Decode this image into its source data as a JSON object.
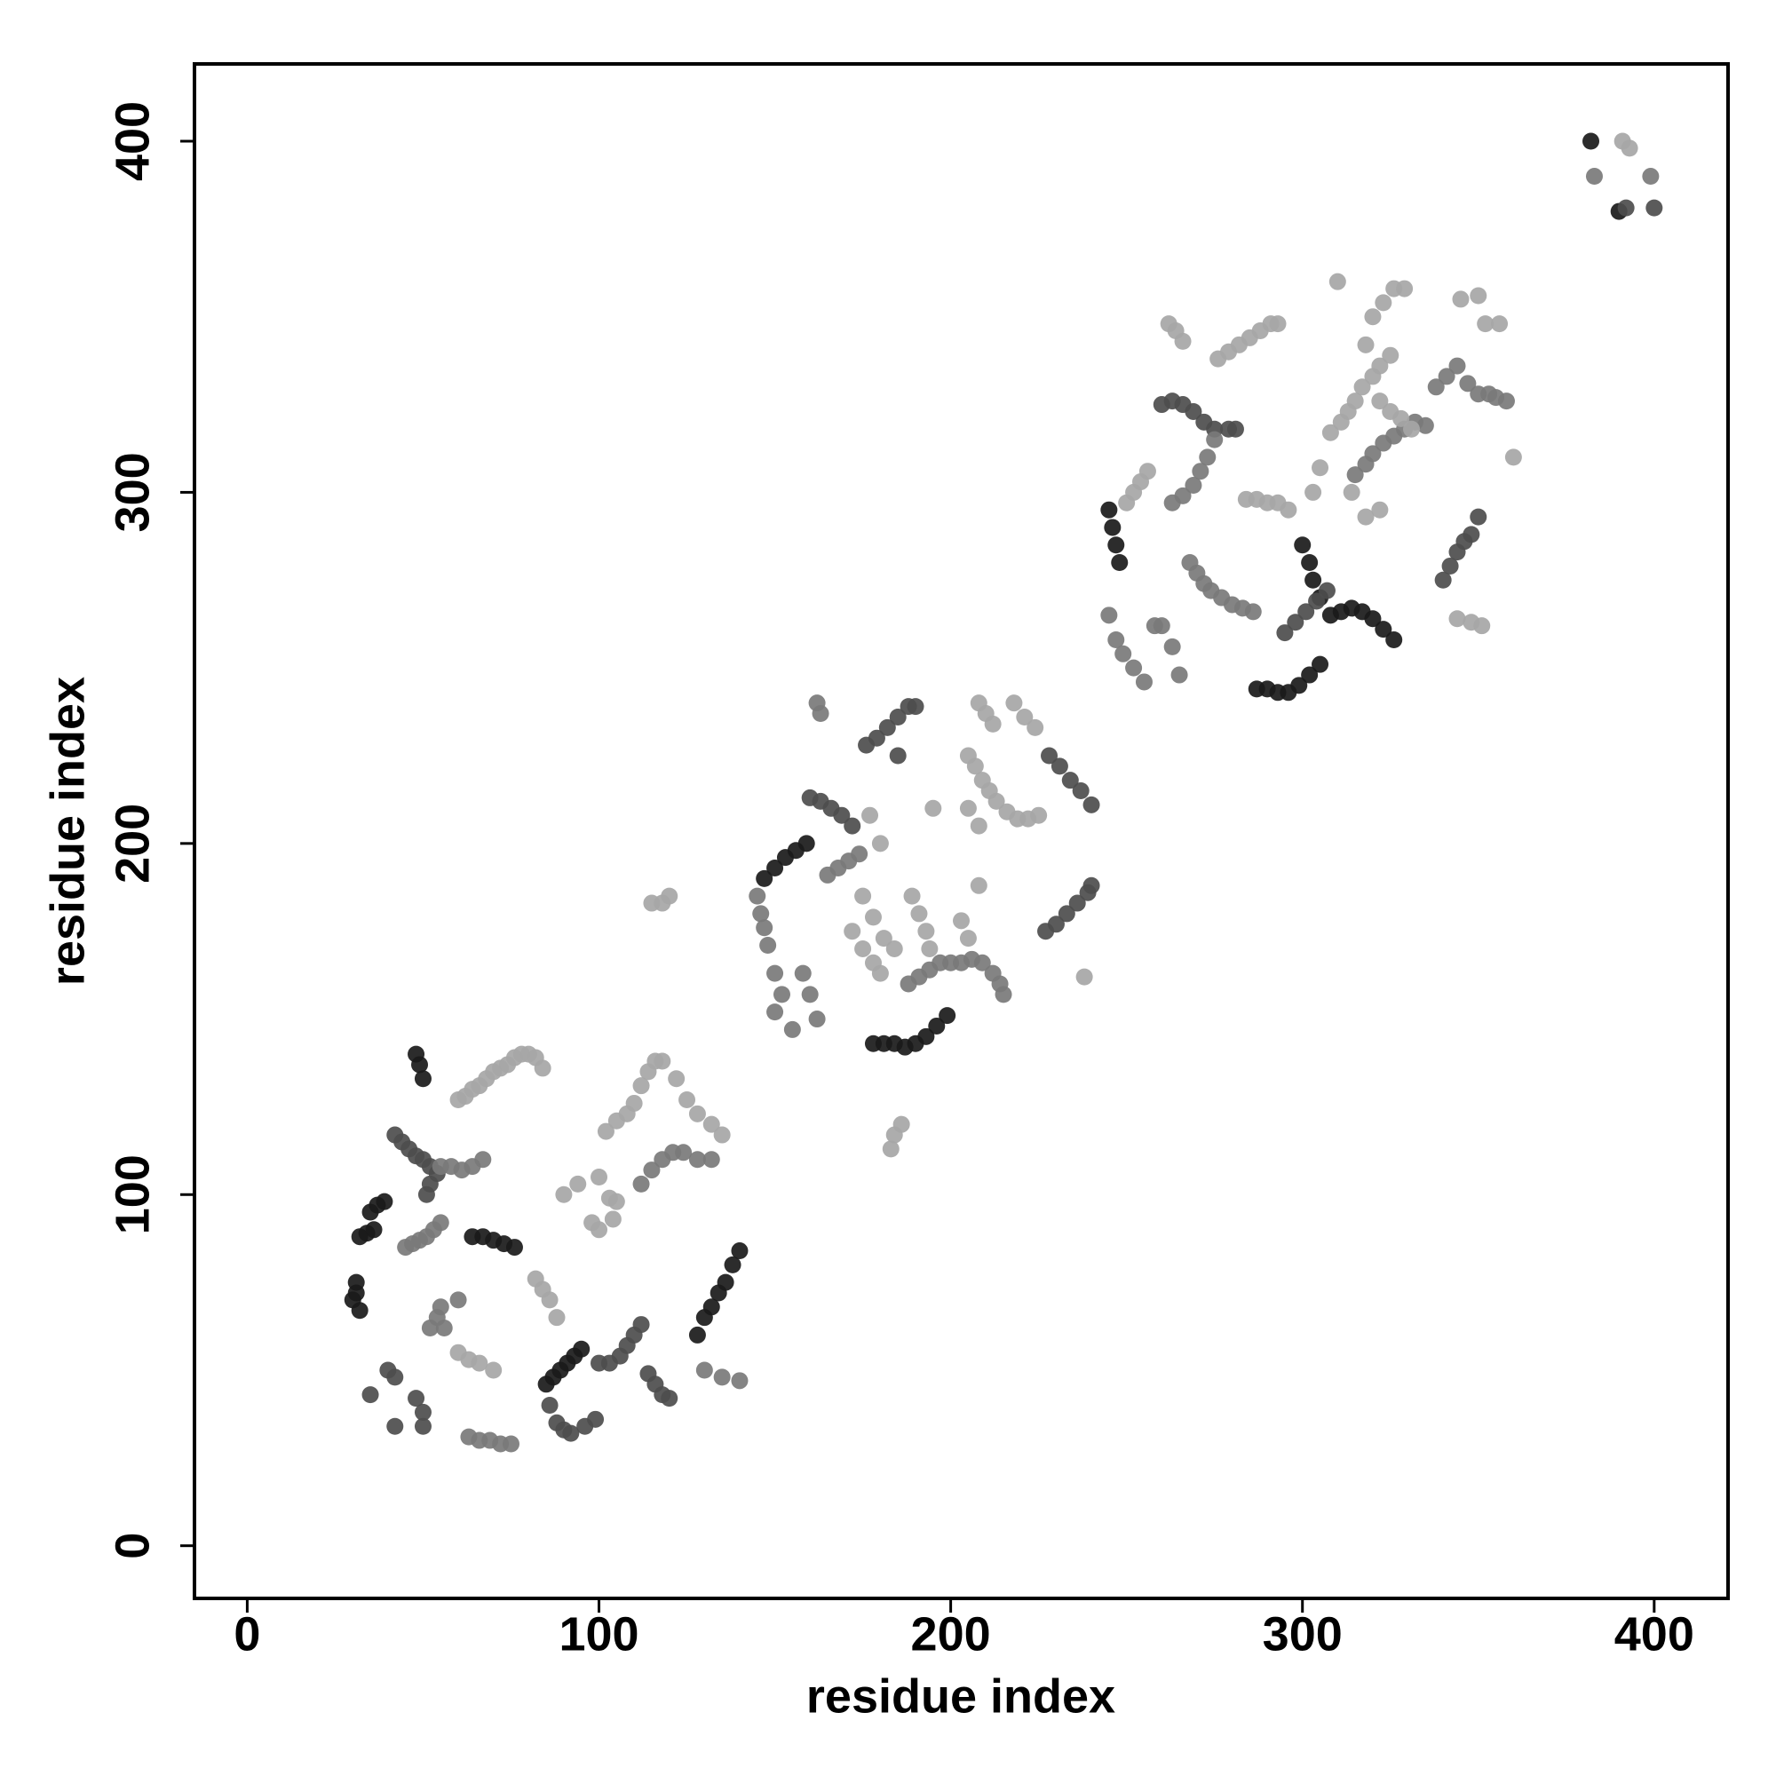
{
  "chart_data": {
    "type": "scatter",
    "xlabel": "residue index",
    "ylabel": "residue index",
    "xlim": [
      -15,
      421
    ],
    "ylim": [
      -15,
      422
    ],
    "xticks": [
      0,
      100,
      200,
      300,
      400
    ],
    "yticks": [
      0,
      100,
      200,
      300,
      400
    ],
    "series": [
      {
        "color": "#1a1a1a",
        "x": [
          30,
          31,
          32,
          31,
          32,
          34,
          35,
          37,
          39,
          36,
          48,
          49,
          50,
          64,
          67,
          70,
          73,
          76,
          85,
          87,
          89,
          91,
          93,
          95,
          128,
          130,
          132,
          134,
          136,
          138,
          140,
          147,
          150,
          153,
          156,
          159,
          178,
          181,
          184,
          187,
          190,
          193,
          196,
          199,
          245,
          246,
          247,
          248,
          287,
          290,
          293,
          296,
          299,
          302,
          305,
          300,
          302,
          303,
          305,
          308,
          311,
          314,
          317,
          320,
          323,
          326,
          382,
          390
        ],
        "y": [
          70,
          72,
          67,
          75,
          88,
          89,
          95,
          97,
          98,
          90,
          140,
          137,
          133,
          88,
          88,
          87,
          86,
          85,
          46,
          48,
          50,
          52,
          54,
          56,
          60,
          65,
          68,
          72,
          75,
          80,
          84,
          190,
          193,
          196,
          198,
          200,
          143,
          143,
          143,
          142,
          143,
          145,
          148,
          151,
          295,
          290,
          285,
          280,
          244,
          244,
          243,
          243,
          245,
          248,
          251,
          285,
          280,
          275,
          270,
          265,
          266,
          267,
          266,
          264,
          261,
          258,
          400,
          380
        ]
      },
      {
        "color": "#4d4d4d",
        "x": [
          42,
          44,
          46,
          48,
          50,
          52,
          54,
          51,
          52,
          40,
          42,
          48,
          50,
          42,
          50,
          35,
          86,
          88,
          90,
          92,
          96,
          99,
          100,
          103,
          106,
          108,
          110,
          112,
          114,
          116,
          118,
          120,
          160,
          163,
          166,
          169,
          172,
          176,
          179,
          182,
          185,
          188,
          190,
          185,
          228,
          231,
          234,
          237,
          240,
          227,
          230,
          233,
          236,
          239,
          240,
          260,
          263,
          266,
          269,
          272,
          275,
          279,
          281,
          295,
          298,
          301,
          304,
          307,
          340,
          342,
          344,
          346,
          348,
          350,
          392,
          400
        ],
        "y": [
          117,
          115,
          113,
          111,
          110,
          108,
          106,
          100,
          103,
          50,
          48,
          42,
          38,
          34,
          34,
          43,
          40,
          35,
          33,
          32,
          34,
          36,
          52,
          52,
          54,
          57,
          60,
          63,
          49,
          46,
          43,
          42,
          213,
          212,
          210,
          208,
          205,
          228,
          230,
          233,
          236,
          239,
          239,
          225,
          225,
          222,
          218,
          215,
          211,
          175,
          177,
          180,
          183,
          186,
          188,
          325,
          326,
          325,
          323,
          320,
          318,
          318,
          318,
          260,
          263,
          266,
          269,
          272,
          275,
          279,
          283,
          286,
          288,
          293,
          381,
          381
        ]
      },
      {
        "color": "#7a7a7a",
        "x": [
          45,
          47,
          49,
          51,
          53,
          55,
          55,
          58,
          61,
          64,
          67,
          60,
          55,
          54,
          56,
          52,
          63,
          66,
          69,
          72,
          75,
          112,
          115,
          118,
          121,
          124,
          128,
          132,
          130,
          135,
          140,
          145,
          146,
          147,
          148,
          150,
          152,
          150,
          155,
          158,
          160,
          162,
          165,
          168,
          171,
          174,
          162,
          163,
          188,
          191,
          194,
          197,
          200,
          203,
          206,
          209,
          212,
          214,
          215,
          245,
          247,
          249,
          252,
          255,
          258,
          260,
          263,
          265,
          263,
          266,
          269,
          271,
          273,
          275,
          268,
          270,
          272,
          274,
          277,
          280,
          283,
          286,
          315,
          318,
          320,
          323,
          326,
          329,
          332,
          335,
          338,
          341,
          344,
          347,
          350,
          353,
          355,
          358,
          383,
          399
        ],
        "y": [
          85,
          86,
          87,
          88,
          90,
          92,
          108,
          108,
          107,
          108,
          110,
          70,
          68,
          65,
          62,
          62,
          31,
          30,
          30,
          29,
          29,
          103,
          107,
          110,
          112,
          112,
          110,
          110,
          50,
          48,
          47,
          185,
          180,
          176,
          171,
          163,
          157,
          152,
          147,
          163,
          157,
          150,
          191,
          193,
          195,
          197,
          240,
          237,
          160,
          162,
          164,
          166,
          166,
          166,
          167,
          166,
          163,
          160,
          157,
          265,
          258,
          254,
          250,
          246,
          262,
          262,
          256,
          248,
          297,
          299,
          302,
          306,
          310,
          315,
          280,
          277,
          274,
          272,
          270,
          268,
          267,
          266,
          305,
          308,
          311,
          314,
          316,
          318,
          320,
          319,
          330,
          333,
          336,
          331,
          328,
          328,
          327,
          326,
          390,
          390
        ]
      },
      {
        "color": "#a6a6a6",
        "x": [
          60,
          62,
          64,
          66,
          68,
          70,
          72,
          74,
          76,
          78,
          80,
          82,
          84,
          60,
          63,
          66,
          70,
          82,
          84,
          86,
          88,
          90,
          94,
          98,
          100,
          104,
          102,
          105,
          108,
          110,
          112,
          114,
          116,
          118,
          122,
          125,
          128,
          132,
          135,
          100,
          103,
          105,
          180,
          177,
          175,
          178,
          181,
          184,
          172,
          175,
          178,
          180,
          183,
          184,
          186,
          189,
          191,
          193,
          194,
          120,
          115,
          118,
          205,
          207,
          209,
          211,
          213,
          216,
          219,
          222,
          225,
          208,
          210,
          212,
          218,
          221,
          224,
          238,
          208,
          205,
          208,
          203,
          205,
          195,
          250,
          252,
          254,
          256,
          262,
          264,
          266,
          276,
          279,
          282,
          285,
          288,
          291,
          293,
          284,
          287,
          290,
          293,
          296,
          303,
          305,
          308,
          311,
          313,
          315,
          317,
          320,
          322,
          325,
          310,
          318,
          320,
          323,
          326,
          329,
          322,
          325,
          328,
          331,
          345,
          350,
          352,
          356,
          344,
          348,
          351,
          360,
          318,
          322,
          314,
          391,
          393
        ],
        "y": [
          127,
          128,
          130,
          131,
          133,
          135,
          136,
          137,
          139,
          140,
          140,
          139,
          136,
          55,
          53,
          52,
          50,
          76,
          73,
          70,
          65,
          100,
          103,
          92,
          90,
          93,
          118,
          121,
          123,
          126,
          131,
          135,
          138,
          138,
          133,
          127,
          123,
          120,
          117,
          105,
          99,
          98,
          200,
          208,
          185,
          179,
          173,
          170,
          175,
          170,
          166,
          163,
          113,
          117,
          120,
          185,
          180,
          175,
          170,
          185,
          183,
          183,
          225,
          222,
          218,
          215,
          212,
          209,
          207,
          207,
          208,
          240,
          237,
          234,
          240,
          236,
          233,
          162,
          205,
          210,
          188,
          178,
          173,
          210,
          297,
          300,
          303,
          306,
          348,
          346,
          343,
          338,
          340,
          342,
          344,
          346,
          348,
          348,
          298,
          298,
          297,
          297,
          295,
          300,
          307,
          317,
          320,
          323,
          326,
          330,
          333,
          336,
          339,
          360,
          342,
          350,
          354,
          358,
          358,
          326,
          323,
          321,
          318,
          355,
          356,
          348,
          348,
          264,
          263,
          262,
          310,
          293,
          295,
          300,
          400,
          398
        ]
      }
    ]
  }
}
